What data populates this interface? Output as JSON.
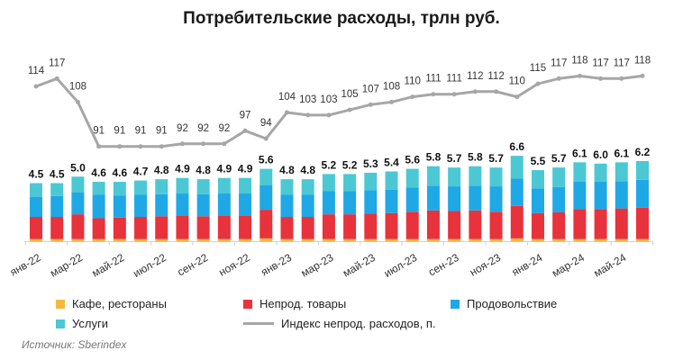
{
  "chart_data": {
    "type": "bar+line",
    "title": "Потребительские расходы, трлн руб.",
    "categories": [
      "янв-22",
      "фев-22",
      "мар-22",
      "апр-22",
      "май-22",
      "июн-22",
      "июл-22",
      "авг-22",
      "сен-22",
      "окт-22",
      "ноя-22",
      "дек-22",
      "янв-23",
      "фев-23",
      "мар-23",
      "апр-23",
      "май-23",
      "июн-23",
      "июл-23",
      "авг-23",
      "сен-23",
      "окт-23",
      "ноя-23",
      "дек-23",
      "янв-24",
      "фев-24",
      "мар-24",
      "апр-24",
      "май-24",
      "июн-24"
    ],
    "tick_labels": [
      "янв-22",
      "мар-22",
      "май-22",
      "июл-22",
      "сен-22",
      "ноя-22",
      "янв-23",
      "мар-23",
      "май-23",
      "июл-23",
      "сен-23",
      "ноя-23",
      "янв-24",
      "мар-24",
      "май-24"
    ],
    "totals": [
      4.5,
      4.5,
      5.0,
      4.6,
      4.6,
      4.7,
      4.8,
      4.9,
      4.8,
      4.9,
      4.9,
      5.6,
      4.8,
      4.8,
      5.2,
      5.2,
      5.3,
      5.4,
      5.6,
      5.8,
      5.7,
      5.8,
      5.7,
      6.6,
      5.5,
      5.7,
      6.1,
      6.0,
      6.1,
      6.2
    ],
    "series": [
      {
        "name": "Кафе, рестораны",
        "type": "stacked-bar",
        "color": "#f5b942",
        "values": [
          0.2,
          0.2,
          0.2,
          0.2,
          0.2,
          0.2,
          0.2,
          0.2,
          0.2,
          0.2,
          0.2,
          0.25,
          0.2,
          0.2,
          0.2,
          0.2,
          0.2,
          0.2,
          0.2,
          0.2,
          0.2,
          0.2,
          0.2,
          0.25,
          0.2,
          0.2,
          0.2,
          0.2,
          0.2,
          0.2
        ]
      },
      {
        "name": "Непрод. товары",
        "type": "stacked-bar",
        "color": "#e8323c",
        "values": [
          1.7,
          1.7,
          1.9,
          1.6,
          1.65,
          1.7,
          1.75,
          1.8,
          1.75,
          1.8,
          1.8,
          2.2,
          1.7,
          1.7,
          1.9,
          1.9,
          1.95,
          2.0,
          2.1,
          2.2,
          2.15,
          2.2,
          2.1,
          2.5,
          2.0,
          2.05,
          2.3,
          2.3,
          2.35,
          2.4
        ]
      },
      {
        "name": "Продовольствие",
        "type": "stacked-bar",
        "color": "#1fa8e6",
        "values": [
          1.55,
          1.6,
          1.7,
          1.8,
          1.7,
          1.7,
          1.7,
          1.7,
          1.7,
          1.7,
          1.7,
          1.9,
          1.7,
          1.7,
          1.8,
          1.8,
          1.8,
          1.8,
          1.85,
          1.9,
          1.9,
          1.9,
          1.95,
          2.1,
          1.9,
          1.95,
          2.1,
          2.1,
          2.1,
          2.15
        ]
      },
      {
        "name": "Услуги",
        "type": "stacked-bar",
        "color": "#4bc8d3",
        "values": [
          1.05,
          1.0,
          1.2,
          1.0,
          1.05,
          1.1,
          1.15,
          1.2,
          1.15,
          1.2,
          1.2,
          1.25,
          1.2,
          1.2,
          1.3,
          1.3,
          1.35,
          1.4,
          1.45,
          1.5,
          1.45,
          1.5,
          1.45,
          1.75,
          1.4,
          1.5,
          1.5,
          1.4,
          1.45,
          1.45
        ]
      },
      {
        "name": "Индекс непрод. расходов, п.",
        "type": "line",
        "color": "#a6a6a6",
        "values": [
          114,
          117,
          108,
          91,
          91,
          91,
          91,
          92,
          92,
          92,
          97,
          94,
          104,
          103,
          103,
          105,
          107,
          108,
          110,
          111,
          111,
          112,
          112,
          110,
          115,
          117,
          118,
          117,
          117,
          118
        ]
      }
    ],
    "legend_position": "bottom",
    "grid": false
  },
  "source": "Источник: Sberindex"
}
